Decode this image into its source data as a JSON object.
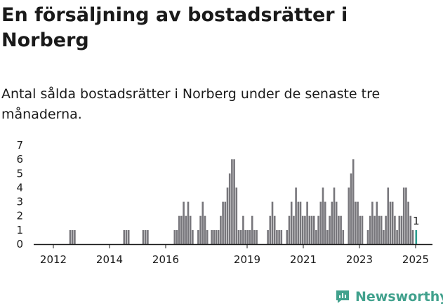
{
  "header": {
    "title": "En försäljning av bostadsrätter i Norberg",
    "subtitle": "Antal sålda bostadsrätter i Norberg under de senaste tre månaderna."
  },
  "brand": {
    "name": "Newsworthy"
  },
  "colors": {
    "bar": "#77767b",
    "highlight": "#2a9d8f",
    "text": "#1a1a1a",
    "axis": "#1a1a1a",
    "brand": "#41a18d"
  },
  "chart_data": {
    "type": "bar",
    "title": "Antal sålda bostadsrätter i Norberg",
    "xlabel": "",
    "ylabel": "",
    "ylim": [
      0,
      7
    ],
    "yticks": [
      0,
      1,
      2,
      3,
      4,
      5,
      6,
      7
    ],
    "xlim": [
      2011.4,
      2025.5
    ],
    "xticks": [
      {
        "label": "2012",
        "value": 2012.1
      },
      {
        "label": "2014",
        "value": 2014.1
      },
      {
        "label": "2016",
        "value": 2016.1
      },
      {
        "label": "2019",
        "value": 2019.0
      },
      {
        "label": "2021",
        "value": 2021.0
      },
      {
        "label": "2023",
        "value": 2023.0
      },
      {
        "label": "2025",
        "value": 2025.0
      }
    ],
    "bar_width_years": 0.065,
    "series": [
      {
        "name": "Antal sålda bostadsrätter",
        "bars": [
          {
            "x": 2012.7,
            "y": 1
          },
          {
            "x": 2012.78,
            "y": 1
          },
          {
            "x": 2012.86,
            "y": 1
          },
          {
            "x": 2014.62,
            "y": 1
          },
          {
            "x": 2014.7,
            "y": 1
          },
          {
            "x": 2014.78,
            "y": 1
          },
          {
            "x": 2015.3,
            "y": 1
          },
          {
            "x": 2015.38,
            "y": 1
          },
          {
            "x": 2015.46,
            "y": 1
          },
          {
            "x": 2016.42,
            "y": 1
          },
          {
            "x": 2016.5,
            "y": 1
          },
          {
            "x": 2016.58,
            "y": 2
          },
          {
            "x": 2016.66,
            "y": 2
          },
          {
            "x": 2016.74,
            "y": 3
          },
          {
            "x": 2016.82,
            "y": 2
          },
          {
            "x": 2016.9,
            "y": 3
          },
          {
            "x": 2016.98,
            "y": 2
          },
          {
            "x": 2017.06,
            "y": 1
          },
          {
            "x": 2017.26,
            "y": 1
          },
          {
            "x": 2017.34,
            "y": 2
          },
          {
            "x": 2017.42,
            "y": 3
          },
          {
            "x": 2017.5,
            "y": 2
          },
          {
            "x": 2017.58,
            "y": 1
          },
          {
            "x": 2017.74,
            "y": 1
          },
          {
            "x": 2017.82,
            "y": 1
          },
          {
            "x": 2017.9,
            "y": 1
          },
          {
            "x": 2017.98,
            "y": 1
          },
          {
            "x": 2018.06,
            "y": 2
          },
          {
            "x": 2018.14,
            "y": 3
          },
          {
            "x": 2018.22,
            "y": 3
          },
          {
            "x": 2018.3,
            "y": 4
          },
          {
            "x": 2018.38,
            "y": 5
          },
          {
            "x": 2018.46,
            "y": 6
          },
          {
            "x": 2018.54,
            "y": 6
          },
          {
            "x": 2018.62,
            "y": 4
          },
          {
            "x": 2018.7,
            "y": 1
          },
          {
            "x": 2018.78,
            "y": 1
          },
          {
            "x": 2018.86,
            "y": 2
          },
          {
            "x": 2018.94,
            "y": 1
          },
          {
            "x": 2019.02,
            "y": 1
          },
          {
            "x": 2019.1,
            "y": 1
          },
          {
            "x": 2019.18,
            "y": 2
          },
          {
            "x": 2019.26,
            "y": 1
          },
          {
            "x": 2019.34,
            "y": 1
          },
          {
            "x": 2019.74,
            "y": 1
          },
          {
            "x": 2019.82,
            "y": 2
          },
          {
            "x": 2019.9,
            "y": 3
          },
          {
            "x": 2019.98,
            "y": 2
          },
          {
            "x": 2020.06,
            "y": 1
          },
          {
            "x": 2020.14,
            "y": 1
          },
          {
            "x": 2020.22,
            "y": 1
          },
          {
            "x": 2020.42,
            "y": 1
          },
          {
            "x": 2020.5,
            "y": 2
          },
          {
            "x": 2020.58,
            "y": 3
          },
          {
            "x": 2020.66,
            "y": 2
          },
          {
            "x": 2020.74,
            "y": 4
          },
          {
            "x": 2020.82,
            "y": 3
          },
          {
            "x": 2020.9,
            "y": 3
          },
          {
            "x": 2020.98,
            "y": 2
          },
          {
            "x": 2021.06,
            "y": 2
          },
          {
            "x": 2021.14,
            "y": 3
          },
          {
            "x": 2021.22,
            "y": 2
          },
          {
            "x": 2021.3,
            "y": 2
          },
          {
            "x": 2021.38,
            "y": 2
          },
          {
            "x": 2021.46,
            "y": 1
          },
          {
            "x": 2021.54,
            "y": 2
          },
          {
            "x": 2021.62,
            "y": 3
          },
          {
            "x": 2021.7,
            "y": 4
          },
          {
            "x": 2021.78,
            "y": 3
          },
          {
            "x": 2021.86,
            "y": 1
          },
          {
            "x": 2021.94,
            "y": 2
          },
          {
            "x": 2022.02,
            "y": 3
          },
          {
            "x": 2022.1,
            "y": 4
          },
          {
            "x": 2022.18,
            "y": 3
          },
          {
            "x": 2022.26,
            "y": 2
          },
          {
            "x": 2022.34,
            "y": 2
          },
          {
            "x": 2022.42,
            "y": 1
          },
          {
            "x": 2022.62,
            "y": 4
          },
          {
            "x": 2022.7,
            "y": 5
          },
          {
            "x": 2022.78,
            "y": 6
          },
          {
            "x": 2022.86,
            "y": 3
          },
          {
            "x": 2022.94,
            "y": 3
          },
          {
            "x": 2023.02,
            "y": 2
          },
          {
            "x": 2023.1,
            "y": 2
          },
          {
            "x": 2023.3,
            "y": 1
          },
          {
            "x": 2023.38,
            "y": 2
          },
          {
            "x": 2023.46,
            "y": 3
          },
          {
            "x": 2023.54,
            "y": 2
          },
          {
            "x": 2023.62,
            "y": 3
          },
          {
            "x": 2023.7,
            "y": 2
          },
          {
            "x": 2023.78,
            "y": 2
          },
          {
            "x": 2023.86,
            "y": 1
          },
          {
            "x": 2023.94,
            "y": 2
          },
          {
            "x": 2024.02,
            "y": 4
          },
          {
            "x": 2024.1,
            "y": 3
          },
          {
            "x": 2024.18,
            "y": 3
          },
          {
            "x": 2024.26,
            "y": 2
          },
          {
            "x": 2024.34,
            "y": 1
          },
          {
            "x": 2024.42,
            "y": 2
          },
          {
            "x": 2024.5,
            "y": 2
          },
          {
            "x": 2024.58,
            "y": 4
          },
          {
            "x": 2024.66,
            "y": 4
          },
          {
            "x": 2024.74,
            "y": 3
          },
          {
            "x": 2024.82,
            "y": 2
          },
          {
            "x": 2024.9,
            "y": 1
          },
          {
            "x": 2025.02,
            "y": 1,
            "highlight": true,
            "label": "1"
          }
        ]
      }
    ]
  }
}
